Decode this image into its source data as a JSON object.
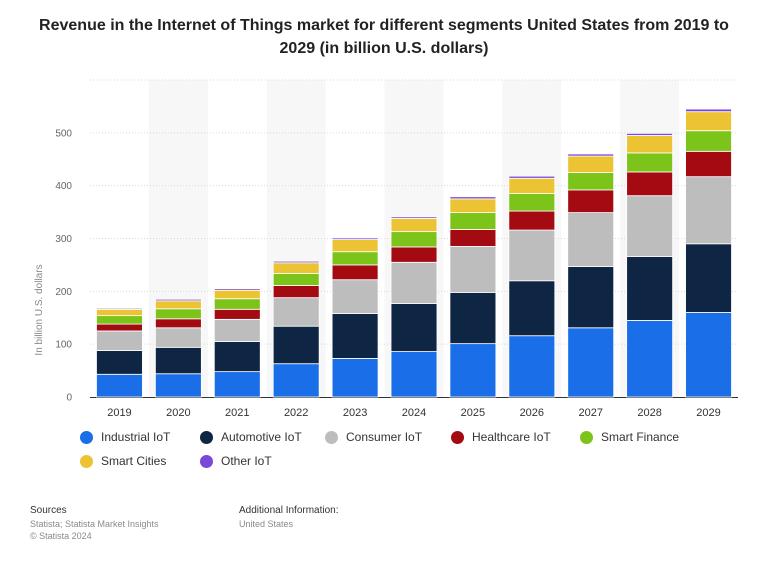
{
  "title": "Revenue in the Internet of Things market for different segments United States from 2019 to 2029 (in billion U.S. dollars)",
  "ylabel": "In billion U.S. dollars",
  "sources_heading": "Sources",
  "sources_line1": "Statista; Statista Market Insights",
  "sources_line2": "© Statista 2024",
  "additional_heading": "Additional Information:",
  "additional_value": "United States",
  "chart_data": {
    "type": "bar",
    "stacked": true,
    "categories": [
      "2019",
      "2020",
      "2021",
      "2022",
      "2023",
      "2024",
      "2025",
      "2026",
      "2027",
      "2028",
      "2029"
    ],
    "ylim": [
      0,
      600
    ],
    "yticks": [
      0,
      100,
      200,
      300,
      400,
      500
    ],
    "grid": true,
    "legend_position": "bottom",
    "series": [
      {
        "name": "Industrial IoT",
        "color": "#1a6ee8",
        "values": [
          43,
          44,
          48,
          63,
          73,
          86,
          101,
          116,
          131,
          145,
          160
        ]
      },
      {
        "name": "Automotive IoT",
        "color": "#0f2544",
        "values": [
          45,
          50,
          57,
          71,
          85,
          91,
          97,
          104,
          116,
          121,
          130
        ]
      },
      {
        "name": "Consumer IoT",
        "color": "#bdbdbd",
        "values": [
          37,
          37,
          42,
          54,
          64,
          78,
          87,
          96,
          102,
          115,
          127
        ]
      },
      {
        "name": "Healthcare IoT",
        "color": "#a30a12",
        "values": [
          13,
          17,
          19,
          23,
          28,
          29,
          32,
          36,
          43,
          45,
          48
        ]
      },
      {
        "name": "Smart Finance",
        "color": "#7cc41a",
        "values": [
          16,
          19,
          20,
          23,
          25,
          29,
          32,
          33,
          33,
          36,
          39
        ]
      },
      {
        "name": "Smart Cities",
        "color": "#ecc333",
        "values": [
          12,
          15,
          16,
          20,
          23,
          25,
          26,
          29,
          31,
          33,
          36
        ]
      },
      {
        "name": "Other IoT",
        "color": "#7a49d8",
        "values": [
          2,
          3,
          3,
          3,
          3,
          3,
          4,
          4,
          4,
          4,
          5
        ]
      }
    ]
  }
}
